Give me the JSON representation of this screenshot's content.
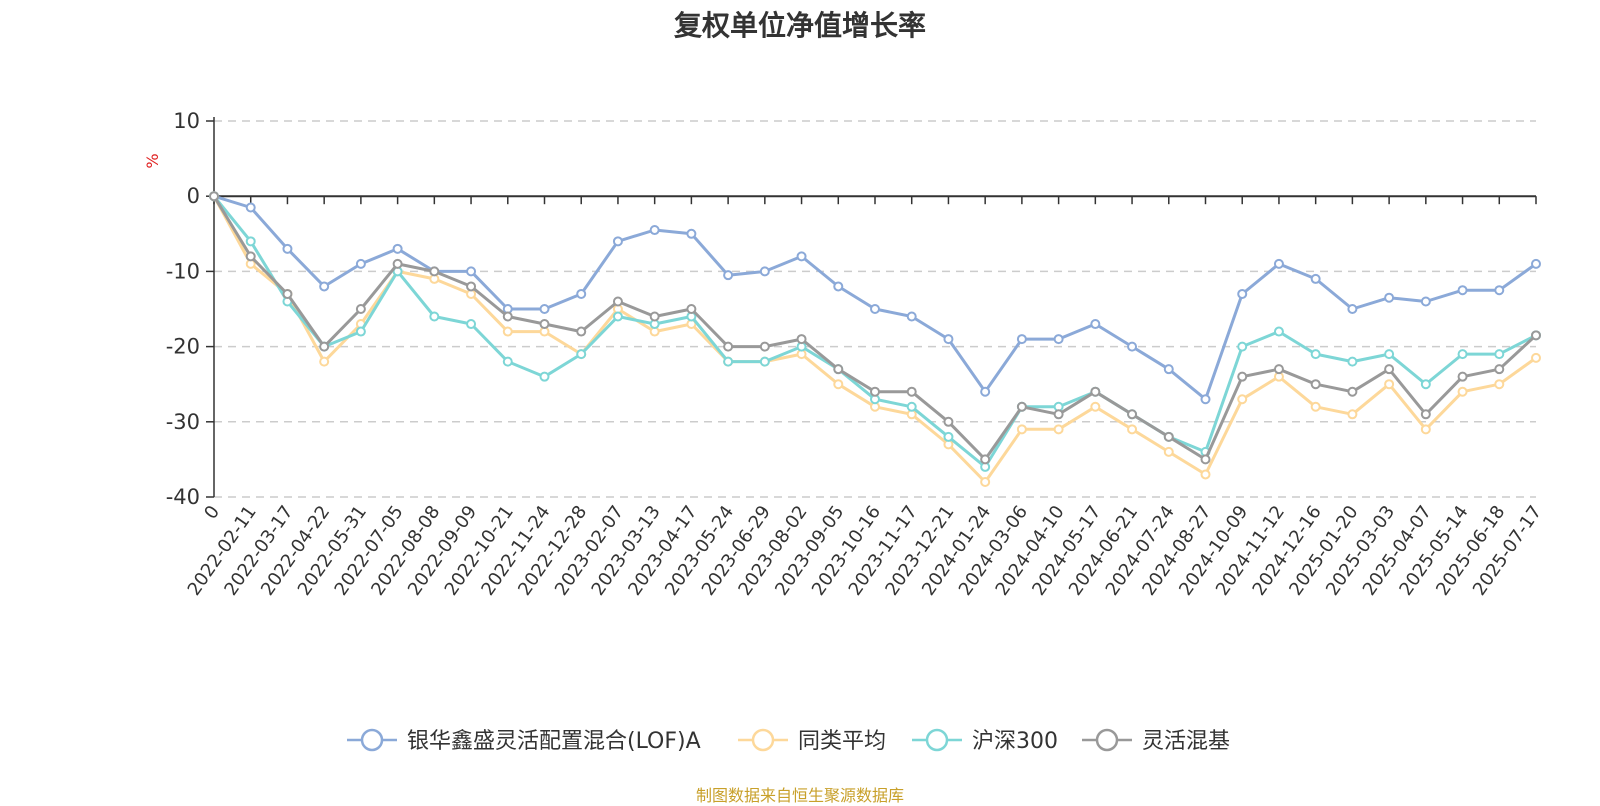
{
  "chart_data": {
    "type": "line",
    "title": "复权单位净值增长率",
    "ylabel": "%",
    "ylim": [
      -40,
      10
    ],
    "yticks": [
      10,
      0,
      -10,
      -20,
      -30,
      -40
    ],
    "grid": true,
    "legend_position": "bottom",
    "source": "制图数据来自恒生聚源数据库",
    "x": [
      "0",
      "2022-02-11",
      "2022-03-17",
      "2022-04-22",
      "2022-05-31",
      "2022-07-05",
      "2022-08-08",
      "2022-09-09",
      "2022-10-21",
      "2022-11-24",
      "2022-12-28",
      "2023-02-07",
      "2023-03-13",
      "2023-04-17",
      "2023-05-24",
      "2023-06-29",
      "2023-08-02",
      "2023-09-05",
      "2023-10-16",
      "2023-11-17",
      "2023-12-21",
      "2024-01-24",
      "2024-03-06",
      "2024-04-10",
      "2024-05-17",
      "2024-06-21",
      "2024-07-24",
      "2024-08-27",
      "2024-10-09",
      "2024-11-12",
      "2024-12-16",
      "2025-01-20",
      "2025-03-03",
      "2025-04-07",
      "2025-05-14",
      "2025-06-18",
      "2025-07-17"
    ],
    "series": [
      {
        "name": "银华鑫盛灵活配置混合(LOF)A",
        "color": "#8ba9d8",
        "values": [
          0,
          -1.5,
          -7,
          -12,
          -9,
          -7,
          -10,
          -10,
          -15,
          -15,
          -13,
          -6,
          -4.5,
          -5,
          -10.5,
          -10,
          -8,
          -12,
          -15,
          -16,
          -19,
          -26,
          -19,
          -19,
          -17,
          -20,
          -23,
          -27,
          -13,
          -9,
          -11,
          -15,
          -13.5,
          -14,
          -12.5,
          -12.5,
          -9
        ]
      },
      {
        "name": "同类平均",
        "color": "#fdd89a",
        "values": [
          0,
          -9,
          -13,
          -22,
          -17,
          -10,
          -11,
          -13,
          -18,
          -18,
          -21,
          -15,
          -18,
          -17,
          -22,
          -22,
          -21,
          -25,
          -28,
          -29,
          -33,
          -38,
          -31,
          -31,
          -28,
          -31,
          -34,
          -37,
          -27,
          -24,
          -28,
          -29,
          -25,
          -31,
          -26,
          -25,
          -21.5
        ]
      },
      {
        "name": "沪深300",
        "color": "#7dd6d6",
        "values": [
          0,
          -6,
          -14,
          -20,
          -18,
          -10,
          -16,
          -17,
          -22,
          -24,
          -21,
          -16,
          -17,
          -16,
          -22,
          -22,
          -20,
          -23,
          -27,
          -28,
          -32,
          -36,
          -28,
          -28,
          -26,
          -29,
          -32,
          -34,
          -20,
          -18,
          -21,
          -22,
          -21,
          -25,
          -21,
          -21,
          -18.5
        ]
      },
      {
        "name": "灵活混基",
        "color": "#999999",
        "values": [
          0,
          -8,
          -13,
          -20,
          -15,
          -9,
          -10,
          -12,
          -16,
          -17,
          -18,
          -14,
          -16,
          -15,
          -20,
          -20,
          -19,
          -23,
          -26,
          -26,
          -30,
          -35,
          -28,
          -29,
          -26,
          -29,
          -32,
          -35,
          -24,
          -23,
          -25,
          -26,
          -23,
          -29,
          -24,
          -23,
          -18.5
        ]
      }
    ]
  }
}
